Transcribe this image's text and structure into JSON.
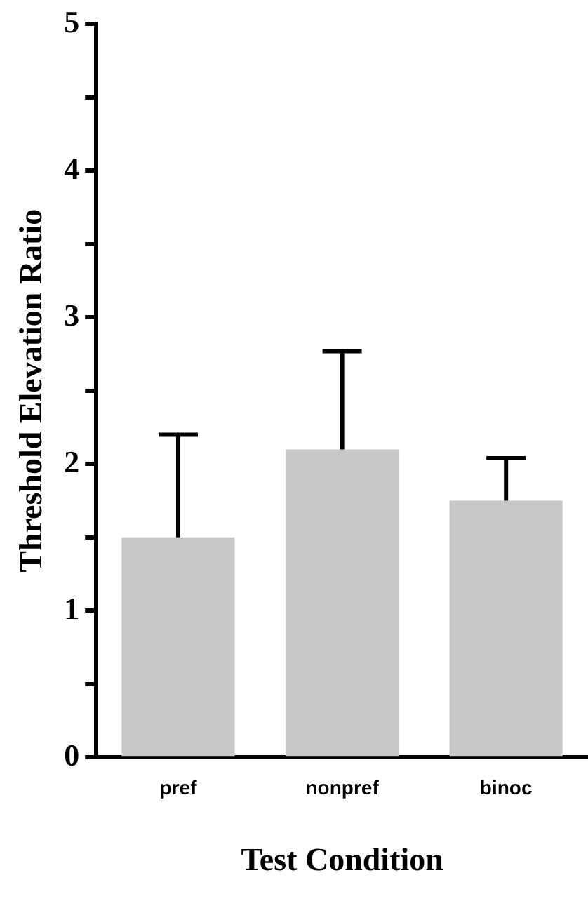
{
  "chart_data": {
    "type": "bar",
    "xlabel": "Test Condition",
    "ylabel": "Threshold Elevation Ratio",
    "categories": [
      "pref",
      "nonpref",
      "binoc"
    ],
    "values": [
      1.5,
      2.1,
      1.75
    ],
    "errors": [
      [
        1.5,
        2.2
      ],
      [
        2.1,
        2.77
      ],
      [
        1.75,
        2.04
      ]
    ],
    "color": "#c8c8c8",
    "ylim": [
      0,
      5
    ],
    "yticks": [
      0,
      {
        "value": 0.5,
        "label": null
      },
      1,
      {
        "value": 1.5,
        "label": null
      },
      2,
      {
        "value": 2.5,
        "label": null
      },
      3,
      {
        "value": 3.5,
        "label": null
      },
      4,
      {
        "value": 4.5,
        "label": null
      },
      5
    ],
    "grid": false,
    "legend": false
  }
}
